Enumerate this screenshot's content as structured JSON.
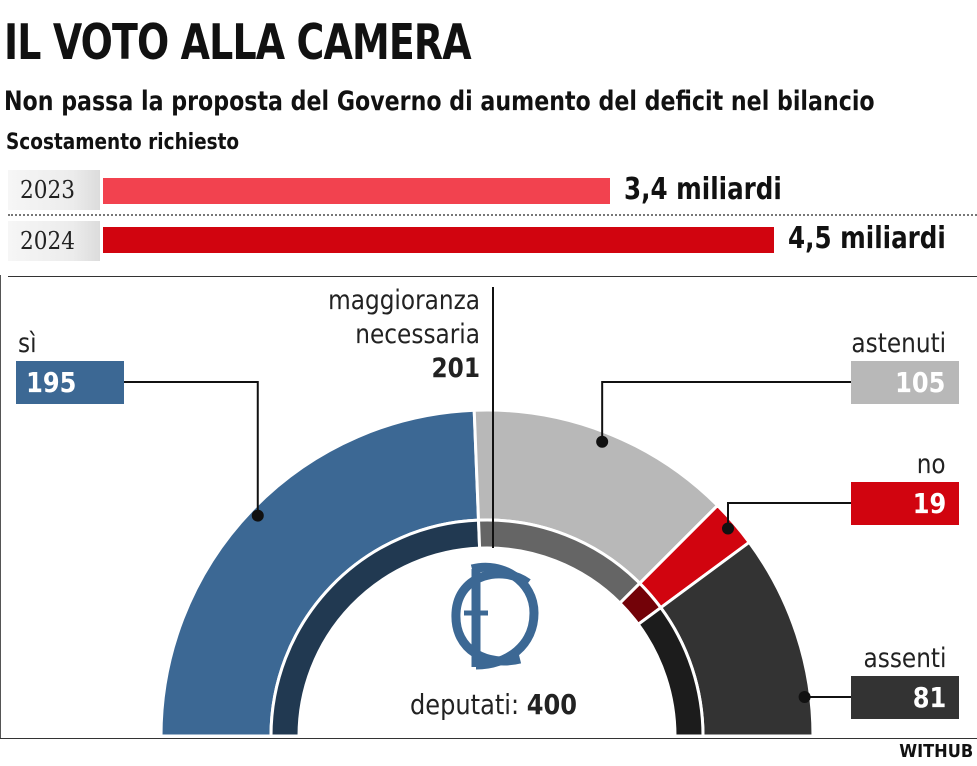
{
  "title": "IL VOTO ALLA CAMERA",
  "subtitle": "Non passa la proposta del Governo di aumento del deficit nel bilancio",
  "deficit": {
    "label": "Scostamento richiesto",
    "rows": [
      {
        "year": "2023",
        "value": 3.4,
        "label": "3,4 miliardi",
        "color": "#f2424f"
      },
      {
        "year": "2024",
        "value": 4.5,
        "label": "4,5 miliardi",
        "color": "#d1040f"
      }
    ]
  },
  "vote": {
    "total_label": "deputati:",
    "total": 400,
    "total_text": "400",
    "majority_label_1": "maggioranza",
    "majority_label_2": "necessaria",
    "majority": 201,
    "majority_text": "201"
  },
  "chart_data": {
    "type": "pie",
    "variant": "semicircle",
    "slices": [
      {
        "name": "sì",
        "value": 195,
        "color": "#3c6894"
      },
      {
        "name": "astenuti",
        "value": 105,
        "color": "#b8b8b8"
      },
      {
        "name": "no",
        "value": 19,
        "color": "#d1040f"
      },
      {
        "name": "assenti",
        "value": 81,
        "color": "#333333"
      }
    ],
    "labels": {
      "si": "sì",
      "si_value": "195",
      "astenuti": "astenuti",
      "astenuti_value": "105",
      "no": "no",
      "no_value": "19",
      "assenti": "assenti",
      "assenti_value": "81"
    }
  },
  "watermark": "WITHUB",
  "icons": {
    "center_logo": "camera-deputati-logo-icon"
  }
}
